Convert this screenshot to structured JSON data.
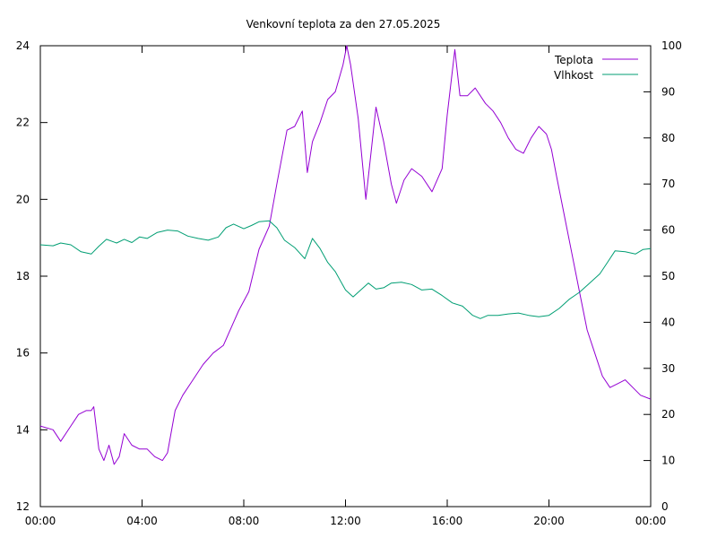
{
  "chart_data": {
    "type": "line",
    "title": "Venkovní teplota za den 27.05.2025",
    "x_ticks": [
      "00:00",
      "04:00",
      "08:00",
      "12:00",
      "16:00",
      "20:00",
      "00:00"
    ],
    "x_range_hours": [
      0,
      24
    ],
    "y_left": {
      "range": [
        12,
        24
      ],
      "ticks": [
        "12",
        "14",
        "16",
        "18",
        "20",
        "22",
        "24"
      ]
    },
    "y_right": {
      "range": [
        0,
        100
      ],
      "ticks": [
        "0",
        "10",
        "20",
        "30",
        "40",
        "50",
        "60",
        "70",
        "80",
        "90",
        "100"
      ]
    },
    "legend_position": "top-right",
    "grid": false,
    "series": [
      {
        "name": "Teplota",
        "axis": "left",
        "color": "#9400d3",
        "points": [
          [
            0.0,
            14.1
          ],
          [
            0.5,
            14.0
          ],
          [
            0.8,
            13.7
          ],
          [
            1.2,
            14.1
          ],
          [
            1.5,
            14.4
          ],
          [
            1.8,
            14.5
          ],
          [
            2.0,
            14.5
          ],
          [
            2.1,
            14.6
          ],
          [
            2.3,
            13.5
          ],
          [
            2.5,
            13.2
          ],
          [
            2.7,
            13.6
          ],
          [
            2.9,
            13.1
          ],
          [
            3.1,
            13.3
          ],
          [
            3.3,
            13.9
          ],
          [
            3.6,
            13.6
          ],
          [
            3.9,
            13.5
          ],
          [
            4.2,
            13.5
          ],
          [
            4.5,
            13.3
          ],
          [
            4.8,
            13.2
          ],
          [
            5.0,
            13.4
          ],
          [
            5.3,
            14.5
          ],
          [
            5.6,
            14.9
          ],
          [
            6.0,
            15.3
          ],
          [
            6.4,
            15.7
          ],
          [
            6.8,
            16.0
          ],
          [
            7.2,
            16.2
          ],
          [
            7.6,
            16.8
          ],
          [
            7.8,
            17.1
          ],
          [
            8.2,
            17.6
          ],
          [
            8.6,
            18.7
          ],
          [
            9.0,
            19.3
          ],
          [
            9.3,
            20.4
          ],
          [
            9.7,
            21.8
          ],
          [
            10.0,
            21.9
          ],
          [
            10.3,
            22.3
          ],
          [
            10.5,
            20.7
          ],
          [
            10.7,
            21.5
          ],
          [
            11.0,
            22.0
          ],
          [
            11.3,
            22.6
          ],
          [
            11.6,
            22.8
          ],
          [
            11.9,
            23.5
          ],
          [
            12.05,
            24.0
          ],
          [
            12.2,
            23.5
          ],
          [
            12.5,
            22.1
          ],
          [
            12.8,
            20.0
          ],
          [
            13.0,
            21.2
          ],
          [
            13.2,
            22.4
          ],
          [
            13.5,
            21.5
          ],
          [
            13.8,
            20.4
          ],
          [
            14.0,
            19.9
          ],
          [
            14.3,
            20.5
          ],
          [
            14.6,
            20.8
          ],
          [
            15.0,
            20.6
          ],
          [
            15.4,
            20.2
          ],
          [
            15.8,
            20.8
          ],
          [
            16.0,
            22.2
          ],
          [
            16.3,
            23.9
          ],
          [
            16.5,
            22.7
          ],
          [
            16.8,
            22.7
          ],
          [
            17.1,
            22.9
          ],
          [
            17.5,
            22.5
          ],
          [
            17.8,
            22.3
          ],
          [
            18.1,
            22.0
          ],
          [
            18.4,
            21.6
          ],
          [
            18.7,
            21.3
          ],
          [
            19.0,
            21.2
          ],
          [
            19.3,
            21.6
          ],
          [
            19.6,
            21.9
          ],
          [
            19.9,
            21.7
          ],
          [
            20.1,
            21.3
          ],
          [
            20.3,
            20.6
          ],
          [
            20.6,
            19.6
          ],
          [
            20.9,
            18.6
          ],
          [
            21.2,
            17.6
          ],
          [
            21.5,
            16.6
          ],
          [
            21.8,
            16.0
          ],
          [
            22.1,
            15.4
          ],
          [
            22.4,
            15.1
          ],
          [
            22.7,
            15.2
          ],
          [
            23.0,
            15.3
          ],
          [
            23.3,
            15.1
          ],
          [
            23.6,
            14.9
          ],
          [
            24.0,
            14.8
          ]
        ]
      },
      {
        "name": "Vlhkost",
        "axis": "right",
        "color": "#009e73",
        "points": [
          [
            0.0,
            56.8
          ],
          [
            0.5,
            56.6
          ],
          [
            0.8,
            57.2
          ],
          [
            1.2,
            56.8
          ],
          [
            1.6,
            55.3
          ],
          [
            2.0,
            54.8
          ],
          [
            2.3,
            56.5
          ],
          [
            2.6,
            58.0
          ],
          [
            3.0,
            57.2
          ],
          [
            3.3,
            58.0
          ],
          [
            3.6,
            57.3
          ],
          [
            3.9,
            58.5
          ],
          [
            4.2,
            58.2
          ],
          [
            4.6,
            59.5
          ],
          [
            5.0,
            60.0
          ],
          [
            5.4,
            59.8
          ],
          [
            5.8,
            58.7
          ],
          [
            6.2,
            58.2
          ],
          [
            6.6,
            57.8
          ],
          [
            7.0,
            58.5
          ],
          [
            7.3,
            60.5
          ],
          [
            7.6,
            61.3
          ],
          [
            8.0,
            60.3
          ],
          [
            8.3,
            61.0
          ],
          [
            8.6,
            61.8
          ],
          [
            9.0,
            62.0
          ],
          [
            9.3,
            60.5
          ],
          [
            9.6,
            57.8
          ],
          [
            10.0,
            56.2
          ],
          [
            10.4,
            53.8
          ],
          [
            10.7,
            58.2
          ],
          [
            11.0,
            56.0
          ],
          [
            11.3,
            53.0
          ],
          [
            11.6,
            51.0
          ],
          [
            12.0,
            47.0
          ],
          [
            12.3,
            45.5
          ],
          [
            12.6,
            47.0
          ],
          [
            12.9,
            48.5
          ],
          [
            13.2,
            47.2
          ],
          [
            13.5,
            47.5
          ],
          [
            13.8,
            48.5
          ],
          [
            14.2,
            48.7
          ],
          [
            14.6,
            48.2
          ],
          [
            15.0,
            47.0
          ],
          [
            15.4,
            47.2
          ],
          [
            15.8,
            45.8
          ],
          [
            16.2,
            44.2
          ],
          [
            16.6,
            43.5
          ],
          [
            17.0,
            41.5
          ],
          [
            17.3,
            40.8
          ],
          [
            17.6,
            41.5
          ],
          [
            18.0,
            41.5
          ],
          [
            18.4,
            41.8
          ],
          [
            18.8,
            42.0
          ],
          [
            19.2,
            41.5
          ],
          [
            19.6,
            41.2
          ],
          [
            20.0,
            41.5
          ],
          [
            20.4,
            43.0
          ],
          [
            20.8,
            45.0
          ],
          [
            21.2,
            46.5
          ],
          [
            21.6,
            48.5
          ],
          [
            22.0,
            50.5
          ],
          [
            22.3,
            53.0
          ],
          [
            22.6,
            55.5
          ],
          [
            23.0,
            55.3
          ],
          [
            23.4,
            54.8
          ],
          [
            23.7,
            55.8
          ],
          [
            24.0,
            56.0
          ]
        ]
      }
    ]
  }
}
